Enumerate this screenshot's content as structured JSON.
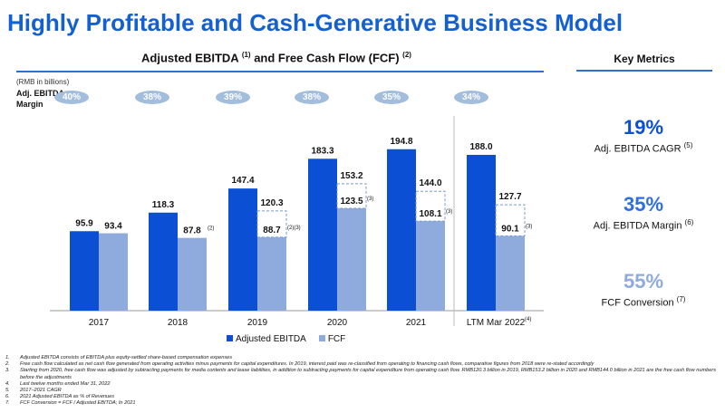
{
  "title": "Highly Profitable and Cash-Generative Business Model",
  "chart_header": {
    "text": "Adjusted EBITDA",
    "sup1": "(1)",
    "mid": " and Free Cash Flow (FCF) ",
    "sup2": "(2)"
  },
  "unit": "(RMB in billions)",
  "margin_label": "Adj. EBITDA Margin",
  "margins": [
    "40%",
    "38%",
    "39%",
    "38%",
    "35%",
    "34%"
  ],
  "chart_data": {
    "type": "bar",
    "title": "Adjusted EBITDA (1) and Free Cash Flow (FCF) (2)",
    "ylabel": "RMB in billions",
    "categories": [
      "2017",
      "2018",
      "2019",
      "2020",
      "2021",
      "LTM Mar 2022"
    ],
    "category_notes": [
      "",
      "",
      "",
      "",
      "",
      "(4)"
    ],
    "series": [
      {
        "name": "Adjusted EBITDA",
        "color": "#0b4fd4",
        "values": [
          95.9,
          118.3,
          147.4,
          183.3,
          194.8,
          188.0
        ],
        "notes": [
          "",
          "",
          "",
          "",
          "",
          ""
        ]
      },
      {
        "name": "FCF",
        "color": "#8faadc",
        "values": [
          93.4,
          87.8,
          88.7,
          123.5,
          108.1,
          90.1
        ],
        "notes": [
          "",
          "(2)",
          "(2)(3)",
          "(3)",
          "(3)",
          "(3)"
        ]
      }
    ],
    "fcf_before_adjustments": [
      null,
      null,
      120.3,
      153.2,
      144.0,
      127.7
    ],
    "ylim": [
      0,
      200
    ],
    "legend": "bottom-center"
  },
  "key_metrics": {
    "title": "Key Metrics",
    "items": [
      {
        "value": "19%",
        "label": "Adj. EBITDA CAGR",
        "note": "(5)",
        "color": "#0b4fd4"
      },
      {
        "value": "35%",
        "label": "Adj. EBITDA Margin",
        "note": "(6)",
        "color": "#2f6fdc"
      },
      {
        "value": "55%",
        "label": "FCF Conversion",
        "note": "(7)",
        "color": "#8faadc"
      }
    ]
  },
  "footnotes": [
    {
      "num": "1.",
      "text": "Adjusted EBITDA consists of EBITDA plus equity-settled share-based compensation expenses"
    },
    {
      "num": "2.",
      "text": "Free cash flow calculated as net cash flow generated from operating activities minus payments for capital expenditures. In 2019, interest paid was re-classified from operating to financing cash flows, comparative figures from 2018 were re-stated accordingly"
    },
    {
      "num": "3.",
      "text": "Starting from 2020, free cash flow was adjusted by subtracting payments for media contents and lease liabilities, in addition to subtracting payments for capital expenditure from operating cash flow. RMB120.3 billion in 2019, RMB153.2 billion in 2020 and RMB144.0 billion in 2021 are the free cash flow numbers before the adjustments"
    },
    {
      "num": "4.",
      "text": "Last twelve months ended Mar 31, 2022"
    },
    {
      "num": "5.",
      "text": "2017–2021 CAGR"
    },
    {
      "num": "6.",
      "text": "2021 Adjusted EBITDA as % of Revenues"
    },
    {
      "num": "7.",
      "text": "FCF Conversion = FCF / Adjusted EBITDA; In 2021"
    }
  ]
}
